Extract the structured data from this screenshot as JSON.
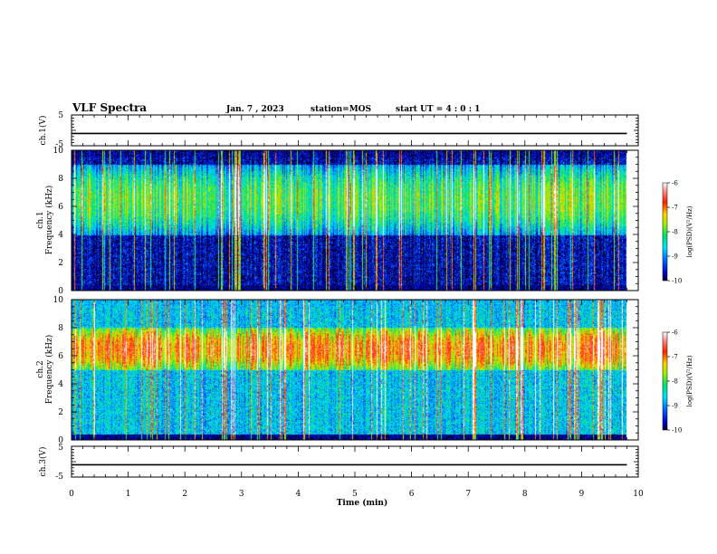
{
  "header": {
    "title": "VLF Spectra",
    "date": "Jan. 7 , 2023",
    "station": "station=MOS",
    "start": "start UT =  4 : 0  : 1"
  },
  "chart_data": [
    {
      "type": "line",
      "name": "ch1-voltage",
      "ylabel": "ch.1(V)",
      "ylim": [
        -5,
        5
      ],
      "yticks": [
        "5",
        "-5"
      ],
      "x": [
        0,
        9.8
      ],
      "values": [
        -1,
        -1
      ]
    },
    {
      "type": "heatmap",
      "name": "ch1-spectrogram",
      "ylabel": [
        "ch.1",
        "Frequency (kHz)"
      ],
      "ylim": [
        0,
        10
      ],
      "yticks": [
        "0",
        "2",
        "4",
        "6",
        "8",
        "10"
      ],
      "xlim": [
        0,
        10
      ],
      "data_extent_min": 9.8,
      "description_levels": {
        "background": -10,
        "band_low_kHz": [
          4,
          9
        ],
        "band_level": -8
      },
      "colorbar": {
        "label": "log(PSD)(V²/Hz)",
        "ticks": [
          "-6",
          "-7",
          "-8",
          "-9",
          "-10"
        ],
        "range": [
          -10,
          -6
        ]
      }
    },
    {
      "type": "heatmap",
      "name": "ch2-spectrogram",
      "ylabel": [
        "ch.2",
        "Frequency (kHz)"
      ],
      "ylim": [
        0,
        10
      ],
      "yticks": [
        "0",
        "2",
        "4",
        "6",
        "8",
        "10"
      ],
      "xlim": [
        0,
        10
      ],
      "data_extent_min": 9.8,
      "description_levels": {
        "background": -9,
        "band_low_kHz": [
          5,
          8
        ],
        "band_level": -7
      },
      "colorbar": {
        "label": "log(PSD)(V²/Hz)",
        "ticks": [
          "-6",
          "-7",
          "-8",
          "-9",
          "-10"
        ],
        "range": [
          -10,
          -6
        ]
      }
    },
    {
      "type": "line",
      "name": "ch3-voltage",
      "ylabel": "ch.3(V)",
      "ylim": [
        -5,
        5
      ],
      "yticks": [
        "5",
        "-5"
      ],
      "x": [
        0,
        9.8
      ],
      "values": [
        -1,
        -1
      ]
    }
  ],
  "xaxis": {
    "label": "Time (min)",
    "ticks": [
      "0",
      "1",
      "2",
      "3",
      "4",
      "5",
      "6",
      "7",
      "8",
      "9",
      "10"
    ],
    "range": [
      0,
      10
    ]
  },
  "colors": {
    "axis": "#000000",
    "background": "#ffffff"
  }
}
